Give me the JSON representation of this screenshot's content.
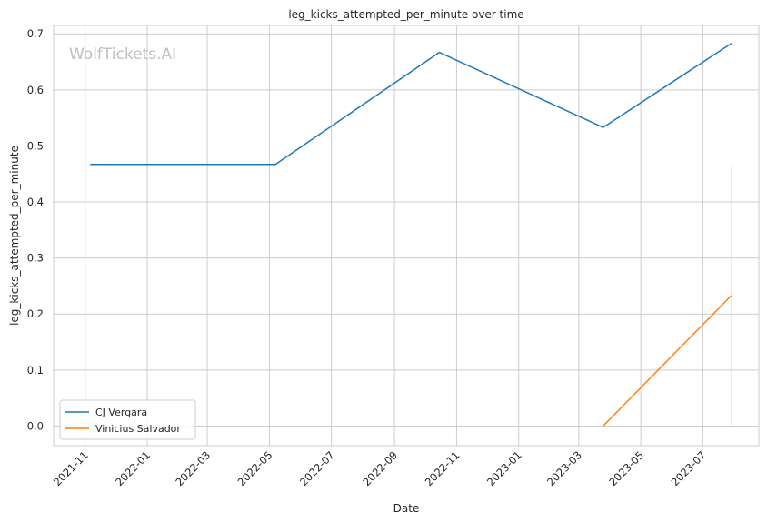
{
  "chart_data": {
    "type": "line",
    "title": "leg_kicks_attempted_per_minute over time",
    "xlabel": "Date",
    "ylabel": "leg_kicks_attempted_per_minute",
    "watermark": "WolfTickets.AI",
    "x_tick_labels": [
      "2021-11",
      "2022-01",
      "2022-03",
      "2022-05",
      "2022-07",
      "2022-09",
      "2022-11",
      "2023-01",
      "2023-03",
      "2023-05",
      "2023-07"
    ],
    "y_tick_labels": [
      "0.0",
      "0.1",
      "0.2",
      "0.3",
      "0.4",
      "0.5",
      "0.6",
      "0.7"
    ],
    "xlim": [
      "2021-10-01",
      "2023-08-25"
    ],
    "ylim": [
      -0.035,
      0.715
    ],
    "grid": true,
    "legend_position": "lower-left",
    "series": [
      {
        "name": "CJ Vergara",
        "color": "#1f77b4",
        "x": [
          "2021-11-06",
          "2022-05-07",
          "2022-10-15",
          "2023-03-25",
          "2023-07-29"
        ],
        "y": [
          0.467,
          0.467,
          0.667,
          0.533,
          0.683
        ]
      },
      {
        "name": "Vinicius Salvador",
        "color": "#ff7f0e",
        "x": [
          "2023-03-25",
          "2023-07-29"
        ],
        "y": [
          0.0,
          0.233
        ]
      }
    ],
    "error_band": {
      "x": "2023-07-29",
      "y_low": 0.0,
      "y_high": 0.467,
      "color": "#ff7f0e"
    }
  }
}
